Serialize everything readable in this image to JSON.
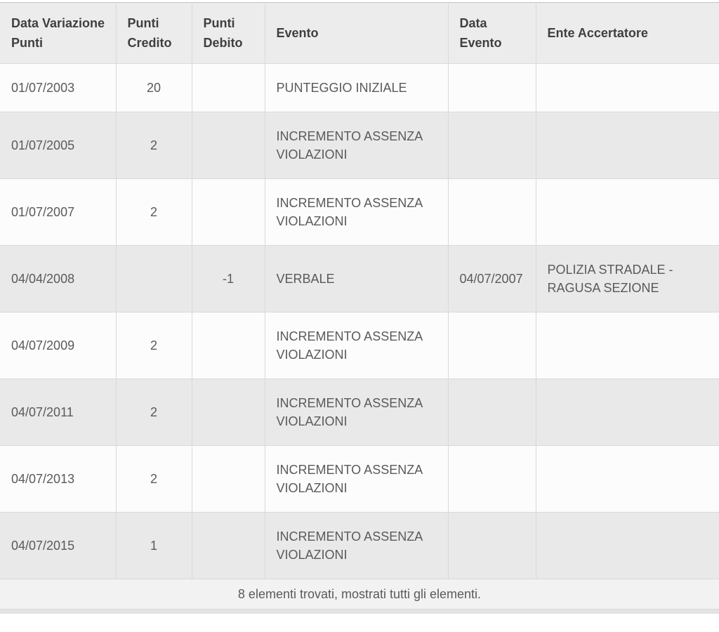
{
  "colors": {
    "header_bg": "#ececec",
    "row_bg": "#fcfcfc",
    "row_alt_bg": "#e9e9e9",
    "footer_bg": "#f2f2f2",
    "border": "#d9d9d9",
    "header_text": "#3f3f3f",
    "cell_text": "#5a5a5a"
  },
  "table": {
    "columns": [
      {
        "id": "data-variazione-punti",
        "label": "Data Variazione Punti"
      },
      {
        "id": "punti-credito",
        "label": "Punti Credito"
      },
      {
        "id": "punti-debito",
        "label": "Punti Debito"
      },
      {
        "id": "evento",
        "label": "Evento"
      },
      {
        "id": "data-evento",
        "label": "Data Evento"
      },
      {
        "id": "ente-accertatore",
        "label": "Ente Accertatore"
      }
    ],
    "rows": [
      [
        "01/07/2003",
        "20",
        "",
        "PUNTEGGIO INIZIALE",
        "",
        ""
      ],
      [
        "01/07/2005",
        "2",
        "",
        "INCREMENTO ASSENZA VIOLAZIONI",
        "",
        ""
      ],
      [
        "01/07/2007",
        "2",
        "",
        "INCREMENTO ASSENZA VIOLAZIONI",
        "",
        ""
      ],
      [
        "04/04/2008",
        "",
        "-1",
        "VERBALE",
        "04/07/2007",
        "POLIZIA STRADALE - RAGUSA SEZIONE"
      ],
      [
        "04/07/2009",
        "2",
        "",
        "INCREMENTO ASSENZA VIOLAZIONI",
        "",
        ""
      ],
      [
        "04/07/2011",
        "2",
        "",
        "INCREMENTO ASSENZA VIOLAZIONI",
        "",
        ""
      ],
      [
        "04/07/2013",
        "2",
        "",
        "INCREMENTO ASSENZA VIOLAZIONI",
        "",
        ""
      ],
      [
        "04/07/2015",
        "1",
        "",
        "INCREMENTO ASSENZA VIOLAZIONI",
        "",
        ""
      ]
    ],
    "footer": "8 elementi trovati, mostrati tutti gli elementi."
  }
}
